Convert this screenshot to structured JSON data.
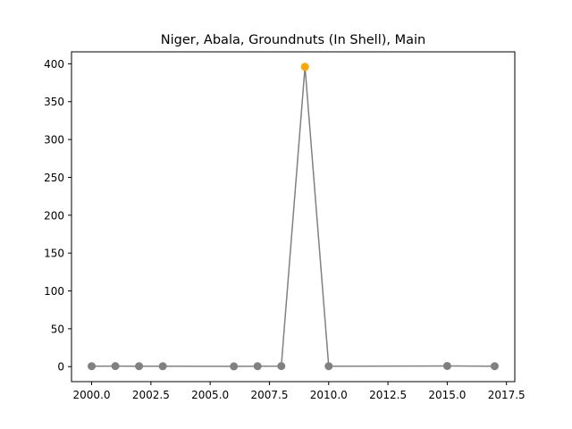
{
  "chart_data": {
    "type": "line",
    "title": "Niger, Abala, Groundnuts (In Shell), Main",
    "xlabel": "",
    "ylabel": "",
    "xlim": [
      1999.15,
      2017.85
    ],
    "ylim": [
      -19.8,
      415.8
    ],
    "xticks": [
      2000.0,
      2002.5,
      2005.0,
      2007.5,
      2010.0,
      2012.5,
      2015.0,
      2017.5
    ],
    "xtick_labels": [
      "2000.0",
      "2002.5",
      "2005.0",
      "2007.5",
      "2010.0",
      "2012.5",
      "2015.0",
      "2017.5"
    ],
    "yticks": [
      0,
      50,
      100,
      150,
      200,
      250,
      300,
      350,
      400
    ],
    "ytick_labels": [
      "0",
      "50",
      "100",
      "150",
      "200",
      "250",
      "300",
      "350",
      "400"
    ],
    "grid": false,
    "line_color": "#808080",
    "marker_color": "#808080",
    "highlight_color": "#FFA500",
    "series": [
      {
        "x": [
          2000,
          2001,
          2002,
          2003,
          2006,
          2007,
          2008,
          2009,
          2010,
          2015,
          2017
        ],
        "values": [
          0.6,
          0.7,
          0.6,
          0.5,
          0.4,
          0.6,
          0.7,
          396,
          0.6,
          0.9,
          0.6
        ],
        "highlight_index": 7
      }
    ]
  }
}
